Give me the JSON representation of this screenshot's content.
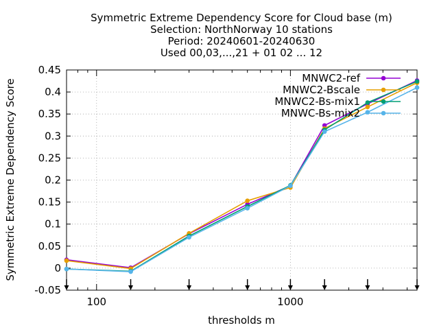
{
  "chart_data": {
    "type": "line",
    "title_lines": [
      "Symmetric Extreme Dependency Score  for Cloud base (m)",
      "Selection: NorthNorway     10 stations",
      "Period: 20240601-20240630",
      "Used 00,03,...,21 + 01 02 ... 12"
    ],
    "xlabel": "thresholds m",
    "ylabel": "Symmetric Extreme Dependency Score",
    "x_scale": "log",
    "xlim": [
      70,
      4500
    ],
    "ylim": [
      -0.05,
      0.45
    ],
    "x_ticks": [
      100,
      1000
    ],
    "x_tick_labels": [
      "100",
      "1000"
    ],
    "y_ticks": [
      -0.05,
      0,
      0.05,
      0.1,
      0.15,
      0.2,
      0.25,
      0.3,
      0.35,
      0.4,
      0.45
    ],
    "y_tick_labels": [
      "-0.05",
      "0",
      "0.05",
      "0.1",
      "0.15",
      "0.2",
      "0.25",
      "0.3",
      "0.35",
      "0.4",
      "0.45"
    ],
    "grid": true,
    "legend_position": "top-right",
    "threshold_markers": [
      70,
      150,
      300,
      600,
      1000,
      1500,
      2500,
      4500
    ],
    "x": [
      70,
      150,
      300,
      600,
      1000,
      1500,
      2500,
      4500
    ],
    "series": [
      {
        "name": "MNWC2-ref",
        "color": "#9400d3",
        "values": [
          0.019,
          0.001,
          0.078,
          0.145,
          0.187,
          0.324,
          0.373,
          0.426
        ]
      },
      {
        "name": "MNWC2-Bscale",
        "color": "#e69f00",
        "values": [
          0.017,
          -0.001,
          0.079,
          0.153,
          0.183,
          0.317,
          0.366,
          0.421
        ]
      },
      {
        "name": "MNWC2-Bs-mix1",
        "color": "#009e73",
        "values": [
          -0.002,
          -0.007,
          0.073,
          0.14,
          0.188,
          0.314,
          0.376,
          0.424
        ]
      },
      {
        "name": "MNWC-Bs-mix2",
        "color": "#56b4e9",
        "values": [
          -0.002,
          -0.008,
          0.07,
          0.136,
          0.187,
          0.31,
          0.354,
          0.41
        ]
      }
    ]
  }
}
